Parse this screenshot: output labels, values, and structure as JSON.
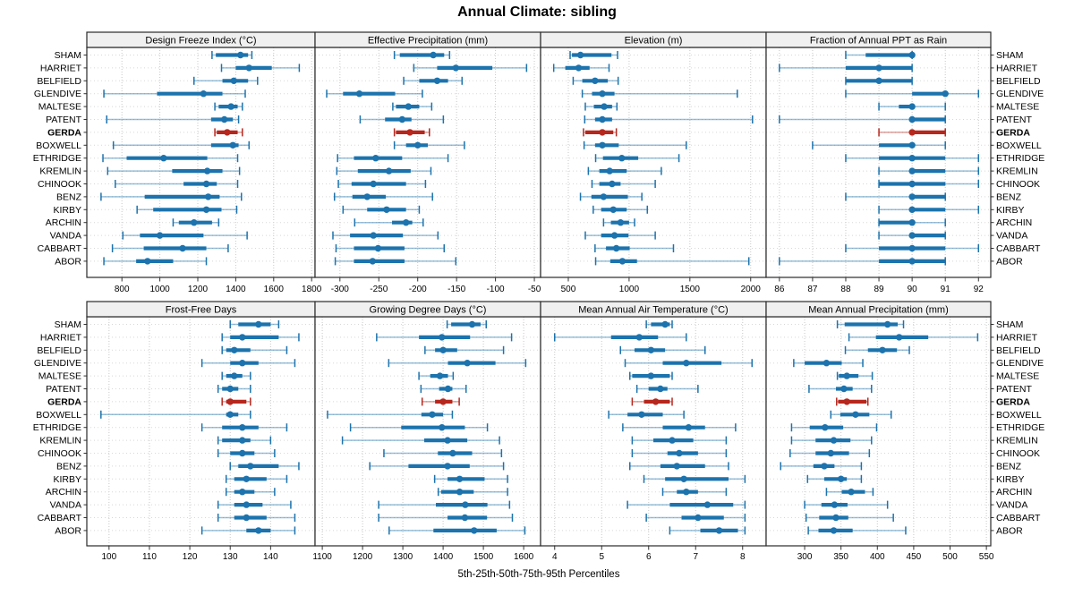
{
  "title": "Annual Climate: sibling",
  "footer": "5th-25th-50th-75th-95th Percentiles",
  "chart_data": {
    "type": "trellis-percentile-dotplot",
    "title": "Annual Climate: sibling",
    "footer": "5th-25th-50th-75th-95th Percentiles",
    "percentile_labels": [
      "5th",
      "25th",
      "50th",
      "75th",
      "95th"
    ],
    "stations": [
      "SHAM",
      "HARRIET",
      "BELFIELD",
      "GLENDIVE",
      "MALTESE",
      "PATENT",
      "GERDA",
      "BOXWELL",
      "ETHRIDGE",
      "KREMLIN",
      "CHINOOK",
      "BENZ",
      "KIRBY",
      "ARCHIN",
      "VANDA",
      "CABBART",
      "ABOR"
    ],
    "highlight_station": "GERDA",
    "colors": {
      "series": "#1c73ad",
      "highlight": "#b6271e",
      "gridline": "#c8c8c8",
      "row_line": "#d8d8d8",
      "panel_border": "#2a2a2a",
      "header_bg": "#f0f0f0",
      "text": "#000000"
    },
    "legend_position": "none",
    "grid": "dotted",
    "panels": [
      {
        "title": "Design Freeze Index (°C)",
        "xlim": [
          615,
          1818
        ],
        "ticks": [
          800,
          1000,
          1200,
          1400,
          1600,
          1800
        ],
        "values": [
          [
            1275,
            1295,
            1425,
            1465,
            1485
          ],
          [
            1325,
            1400,
            1470,
            1590,
            1735
          ],
          [
            1180,
            1330,
            1390,
            1465,
            1515
          ],
          [
            705,
            985,
            1230,
            1330,
            1450
          ],
          [
            1290,
            1310,
            1375,
            1410,
            1435
          ],
          [
            720,
            1270,
            1340,
            1385,
            1415
          ],
          [
            1290,
            1300,
            1355,
            1410,
            1435
          ],
          [
            755,
            1270,
            1385,
            1415,
            1470
          ],
          [
            700,
            825,
            1020,
            1250,
            1410
          ],
          [
            725,
            1065,
            1250,
            1330,
            1420
          ],
          [
            765,
            1125,
            1245,
            1300,
            1410
          ],
          [
            690,
            920,
            1255,
            1315,
            1430
          ],
          [
            880,
            965,
            1245,
            1325,
            1405
          ],
          [
            1070,
            1100,
            1180,
            1275,
            1310
          ],
          [
            805,
            895,
            1000,
            1230,
            1460
          ],
          [
            750,
            915,
            1120,
            1245,
            1360
          ],
          [
            705,
            875,
            935,
            1070,
            1245
          ]
        ]
      },
      {
        "title": "Effective Precipitation (mm)",
        "xlim": [
          -332,
          -42
        ],
        "ticks": [
          -300,
          -250,
          -200,
          -150,
          -100,
          -50
        ],
        "values": [
          [
            -230,
            -223,
            -180,
            -166,
            -159
          ],
          [
            -205,
            -175,
            -151,
            -104,
            -60
          ],
          [
            -218,
            -198,
            -175,
            -161,
            -143
          ],
          [
            -317,
            -296,
            -275,
            -229,
            -194
          ],
          [
            -232,
            -228,
            -212,
            -198,
            -182
          ],
          [
            -274,
            -242,
            -220,
            -208,
            -167
          ],
          [
            -230,
            -228,
            -210,
            -191,
            -185
          ],
          [
            -230,
            -215,
            -200,
            -187,
            -140
          ],
          [
            -303,
            -282,
            -254,
            -220,
            -161
          ],
          [
            -304,
            -277,
            -237,
            -209,
            -183
          ],
          [
            -302,
            -285,
            -257,
            -215,
            -190
          ],
          [
            -307,
            -284,
            -265,
            -241,
            -181
          ],
          [
            -296,
            -265,
            -240,
            -215,
            -198
          ],
          [
            -281,
            -233,
            -215,
            -207,
            -193
          ],
          [
            -309,
            -287,
            -257,
            -219,
            -174
          ],
          [
            -305,
            -282,
            -251,
            -217,
            -166
          ],
          [
            -306,
            -282,
            -258,
            -217,
            -151
          ]
        ]
      },
      {
        "title": "Elevation (m)",
        "xlim": [
          272,
          2127
        ],
        "ticks": [
          500,
          1000,
          1500,
          2000
        ],
        "values": [
          [
            515,
            530,
            600,
            855,
            905
          ],
          [
            380,
            475,
            585,
            675,
            835
          ],
          [
            540,
            615,
            720,
            825,
            910
          ],
          [
            615,
            695,
            780,
            880,
            1890
          ],
          [
            640,
            710,
            795,
            860,
            900
          ],
          [
            635,
            720,
            780,
            860,
            2015
          ],
          [
            625,
            640,
            780,
            870,
            895
          ],
          [
            630,
            720,
            780,
            915,
            1470
          ],
          [
            725,
            785,
            940,
            1075,
            1410
          ],
          [
            665,
            755,
            840,
            980,
            1265
          ],
          [
            695,
            755,
            860,
            930,
            1215
          ],
          [
            600,
            690,
            790,
            990,
            1105
          ],
          [
            705,
            770,
            870,
            980,
            1150
          ],
          [
            790,
            850,
            930,
            1000,
            1045
          ],
          [
            640,
            770,
            880,
            995,
            1215
          ],
          [
            720,
            810,
            895,
            1005,
            1365
          ],
          [
            725,
            845,
            945,
            1065,
            1985
          ]
        ]
      },
      {
        "title": "Fraction of Annual PPT as Rain",
        "xlim": [
          85.6,
          92.37
        ],
        "ticks": [
          86,
          87,
          88,
          89,
          90,
          91,
          92
        ],
        "values": [
          [
            88,
            88.6,
            90,
            90,
            90
          ],
          [
            86,
            88,
            89,
            90,
            90
          ],
          [
            88,
            88,
            89,
            90,
            90
          ],
          [
            88,
            90,
            91,
            91,
            92
          ],
          [
            89,
            89.6,
            90,
            90,
            91
          ],
          [
            86,
            90,
            90,
            91,
            91
          ],
          [
            89,
            90,
            90,
            91,
            91
          ],
          [
            87,
            89,
            90,
            90,
            91
          ],
          [
            88,
            89,
            90,
            91,
            92
          ],
          [
            89,
            90,
            90,
            91,
            92
          ],
          [
            89,
            89,
            90,
            91,
            92
          ],
          [
            88,
            90,
            90,
            91,
            91
          ],
          [
            89,
            90,
            90,
            91,
            92
          ],
          [
            89,
            89,
            90,
            90,
            91
          ],
          [
            89,
            90,
            90,
            91,
            91
          ],
          [
            88,
            89,
            90,
            91,
            92
          ],
          [
            86,
            89,
            90,
            91,
            91
          ]
        ]
      },
      {
        "title": "Frost-Free Days",
        "xlim": [
          94.5,
          151
        ],
        "ticks": [
          100,
          110,
          120,
          130,
          140
        ],
        "values": [
          [
            130,
            132,
            137,
            140,
            142
          ],
          [
            128,
            130,
            133,
            142,
            147
          ],
          [
            128,
            129,
            131,
            135,
            144
          ],
          [
            123,
            130,
            133,
            137,
            146
          ],
          [
            128,
            129,
            131,
            133,
            135
          ],
          [
            127,
            128,
            130,
            132,
            135
          ],
          [
            128,
            129,
            130,
            134,
            135
          ],
          [
            98,
            129,
            130,
            132,
            135
          ],
          [
            123,
            128,
            133,
            137,
            144
          ],
          [
            127,
            128,
            133,
            135,
            140
          ],
          [
            127,
            130,
            133,
            136,
            141
          ],
          [
            130,
            132,
            135,
            142,
            147
          ],
          [
            129,
            131,
            134,
            139,
            144
          ],
          [
            129,
            131,
            133,
            136,
            141
          ],
          [
            127,
            131,
            134,
            138,
            145
          ],
          [
            127,
            131,
            134,
            139,
            146
          ],
          [
            123,
            134,
            137,
            140,
            146
          ]
        ]
      },
      {
        "title": "Growing Degree Days (°C)",
        "xlim": [
          1082,
          1642
        ],
        "ticks": [
          1100,
          1200,
          1300,
          1400,
          1500,
          1600
        ],
        "values": [
          [
            1410,
            1420,
            1472,
            1493,
            1507
          ],
          [
            1235,
            1340,
            1397,
            1467,
            1570
          ],
          [
            1355,
            1380,
            1400,
            1435,
            1550
          ],
          [
            1265,
            1412,
            1460,
            1530,
            1605
          ],
          [
            1340,
            1368,
            1392,
            1412,
            1425
          ],
          [
            1345,
            1390,
            1412,
            1423,
            1457
          ],
          [
            1348,
            1380,
            1400,
            1423,
            1440
          ],
          [
            1113,
            1346,
            1373,
            1400,
            1423
          ],
          [
            1170,
            1296,
            1397,
            1454,
            1510
          ],
          [
            1150,
            1353,
            1411,
            1460,
            1540
          ],
          [
            1253,
            1387,
            1424,
            1472,
            1545
          ],
          [
            1218,
            1314,
            1411,
            1466,
            1550
          ],
          [
            1379,
            1411,
            1441,
            1503,
            1560
          ],
          [
            1388,
            1395,
            1441,
            1476,
            1560
          ],
          [
            1240,
            1382,
            1455,
            1510,
            1565
          ],
          [
            1240,
            1411,
            1454,
            1509,
            1572
          ],
          [
            1266,
            1376,
            1477,
            1533,
            1603
          ]
        ]
      },
      {
        "title": "Mean Annual Air Temperature (°C)",
        "xlim": [
          3.7,
          8.5
        ],
        "ticks": [
          4,
          5,
          6,
          7,
          8
        ],
        "values": [
          [
            5.95,
            6.05,
            6.35,
            6.45,
            6.5
          ],
          [
            4.0,
            5.2,
            5.8,
            6.2,
            6.8
          ],
          [
            5.4,
            5.7,
            6.05,
            6.35,
            7.2
          ],
          [
            5.5,
            6.3,
            6.8,
            7.55,
            8.2
          ],
          [
            5.6,
            5.65,
            6.05,
            6.45,
            6.5
          ],
          [
            5.75,
            6.0,
            6.25,
            6.4,
            7.05
          ],
          [
            5.65,
            5.9,
            6.15,
            6.45,
            6.5
          ],
          [
            5.15,
            5.55,
            5.85,
            6.3,
            6.75
          ],
          [
            5.45,
            6.3,
            6.85,
            7.2,
            7.85
          ],
          [
            5.65,
            6.1,
            6.5,
            6.95,
            7.65
          ],
          [
            5.65,
            6.4,
            6.65,
            7.05,
            7.65
          ],
          [
            5.6,
            6.25,
            6.6,
            7.2,
            7.7
          ],
          [
            5.9,
            6.35,
            6.75,
            7.7,
            8.05
          ],
          [
            6.3,
            6.6,
            6.8,
            7.05,
            7.65
          ],
          [
            5.55,
            6.45,
            7.25,
            7.8,
            8.05
          ],
          [
            5.95,
            6.7,
            7.05,
            7.6,
            8.05
          ],
          [
            6.45,
            7.1,
            7.5,
            7.9,
            8.05
          ]
        ]
      },
      {
        "title": "Mean Annual Precipitation (mm)",
        "xlim": [
          247,
          556
        ],
        "ticks": [
          300,
          350,
          400,
          450,
          500,
          550
        ],
        "values": [
          [
            345,
            355,
            414,
            428,
            436
          ],
          [
            361,
            398,
            430,
            470,
            538
          ],
          [
            356,
            387,
            407,
            427,
            444
          ],
          [
            285,
            300,
            330,
            351,
            380
          ],
          [
            345,
            347,
            358,
            374,
            393
          ],
          [
            306,
            343,
            354,
            366,
            392
          ],
          [
            344,
            346,
            358,
            385,
            387
          ],
          [
            336,
            349,
            370,
            389,
            419
          ],
          [
            282,
            307,
            328,
            353,
            399
          ],
          [
            282,
            315,
            340,
            363,
            392
          ],
          [
            280,
            315,
            336,
            361,
            389
          ],
          [
            267,
            312,
            327,
            341,
            378
          ],
          [
            304,
            327,
            350,
            358,
            378
          ],
          [
            330,
            351,
            364,
            383,
            394
          ],
          [
            300,
            323,
            341,
            359,
            414
          ],
          [
            302,
            320,
            343,
            360,
            422
          ],
          [
            305,
            319,
            340,
            366,
            439
          ]
        ]
      }
    ]
  }
}
